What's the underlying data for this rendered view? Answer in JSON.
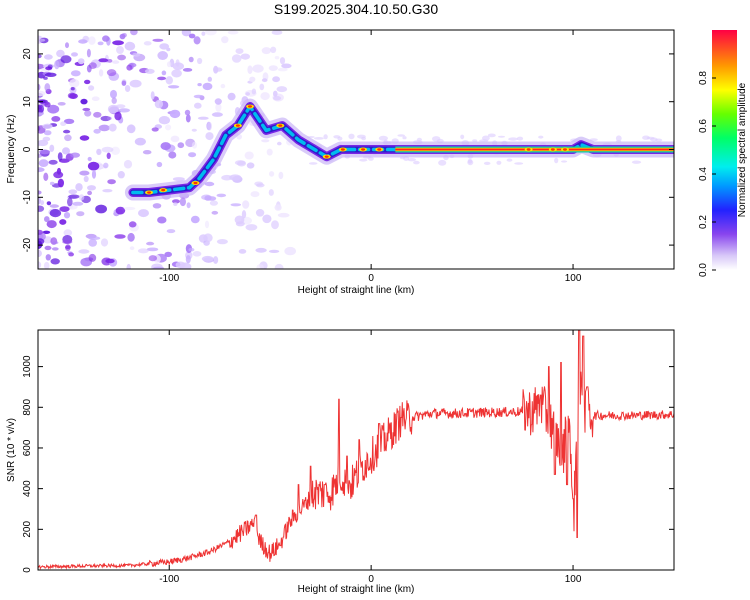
{
  "title": "S199.2025.304.10.50.G30",
  "chart_data": [
    {
      "type": "heatmap",
      "name": "spectrogram",
      "xlabel": "Height of straight line (km)",
      "ylabel": "Frequency (Hz)",
      "xlim": [
        -165,
        150
      ],
      "ylim": [
        -25,
        25
      ],
      "xticks": [
        -100,
        0,
        100
      ],
      "yticks": [
        -20,
        -10,
        0,
        10,
        20
      ],
      "colorbar": {
        "label": "Normalized spectral amplitude",
        "range": [
          0,
          1
        ],
        "ticks": [
          0.0,
          0.2,
          0.4,
          0.6,
          0.8
        ],
        "tick_labels": [
          "0.0",
          "0.2",
          "0.4",
          "0.6",
          "0.8"
        ]
      },
      "ridge": [
        {
          "x": -118,
          "y": -9
        },
        {
          "x": -110,
          "y": -9
        },
        {
          "x": -100,
          "y": -8.5
        },
        {
          "x": -90,
          "y": -8
        },
        {
          "x": -85,
          "y": -6
        },
        {
          "x": -78,
          "y": -2
        },
        {
          "x": -72,
          "y": 3
        },
        {
          "x": -66,
          "y": 5
        },
        {
          "x": -60,
          "y": 9
        },
        {
          "x": -52,
          "y": 4
        },
        {
          "x": -44,
          "y": 5
        },
        {
          "x": -36,
          "y": 2
        },
        {
          "x": -28,
          "y": 0
        },
        {
          "x": -22,
          "y": -1.5
        },
        {
          "x": -15,
          "y": 0
        },
        {
          "x": 0,
          "y": 0
        },
        {
          "x": 10,
          "y": 0
        },
        {
          "x": 60,
          "y": 0
        },
        {
          "x": 70,
          "y": 0
        },
        {
          "x": 90,
          "y": 0
        },
        {
          "x": 100,
          "y": 0
        },
        {
          "x": 104,
          "y": 1
        },
        {
          "x": 110,
          "y": 0
        },
        {
          "x": 150,
          "y": 0
        }
      ]
    },
    {
      "type": "line",
      "name": "snr",
      "xlabel": "Height of straight line (km)",
      "ylabel": "SNR (10 * v/v)",
      "xlim": [
        -165,
        150
      ],
      "ylim": [
        0,
        1180
      ],
      "xticks": [
        -100,
        0,
        100
      ],
      "yticks": [
        0,
        200,
        400,
        600,
        800,
        1000
      ],
      "color": "#ee3333",
      "series": [
        {
          "name": "SNR",
          "x": [
            -165,
            -140,
            -120,
            -100,
            -90,
            -80,
            -70,
            -62,
            -58,
            -55,
            -50,
            -45,
            -40,
            -33,
            -28,
            -20,
            -15,
            -10,
            -5,
            0,
            5,
            10,
            15,
            20,
            25,
            30,
            40,
            60,
            80,
            84,
            90,
            95,
            98,
            100,
            102,
            104,
            106,
            110,
            130,
            150
          ],
          "y": [
            15,
            20,
            22,
            40,
            60,
            90,
            140,
            200,
            230,
            140,
            80,
            130,
            240,
            320,
            380,
            380,
            460,
            420,
            500,
            560,
            620,
            680,
            740,
            750,
            760,
            770,
            770,
            775,
            780,
            820,
            700,
            560,
            800,
            180,
            700,
            870,
            780,
            760,
            760,
            765
          ],
          "spikes": [
            {
              "x": -57,
              "y": 270
            },
            {
              "x": -45,
              "y": 120
            },
            {
              "x": -36,
              "y": 420
            },
            {
              "x": -30,
              "y": 510
            },
            {
              "x": -23,
              "y": 420
            },
            {
              "x": -16,
              "y": 840
            },
            {
              "x": -12,
              "y": 560
            },
            {
              "x": -6,
              "y": 640
            },
            {
              "x": 4,
              "y": 720
            },
            {
              "x": 15,
              "y": 750
            },
            {
              "x": 84,
              "y": 860
            },
            {
              "x": 88,
              "y": 1000
            },
            {
              "x": 91,
              "y": 470
            },
            {
              "x": 94,
              "y": 1020
            },
            {
              "x": 97,
              "y": 420
            },
            {
              "x": 100,
              "y": 350
            },
            {
              "x": 102,
              "y": 160
            },
            {
              "x": 103,
              "y": 1180
            },
            {
              "x": 105,
              "y": 1150
            },
            {
              "x": 107,
              "y": 900
            }
          ]
        }
      ]
    }
  ]
}
